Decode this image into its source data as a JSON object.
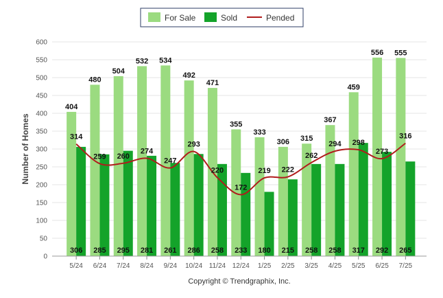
{
  "colors": {
    "for_sale": "#9bdb80",
    "sold": "#14a32a",
    "pended": "#b01c1c",
    "grid": "#e6e6e6"
  },
  "copyright": "Copyright © Trendgraphix, Inc.",
  "chart_data": {
    "type": "bar",
    "ylabel": "Number of Homes",
    "xlabel": "",
    "ylim": [
      0,
      600
    ],
    "yticks": [
      0,
      50,
      100,
      150,
      200,
      250,
      300,
      350,
      400,
      450,
      500,
      550,
      600
    ],
    "grid": true,
    "legend_position": "top-center",
    "categories": [
      "5/24",
      "6/24",
      "7/24",
      "8/24",
      "9/24",
      "10/24",
      "11/24",
      "12/24",
      "1/25",
      "2/25",
      "3/25",
      "4/25",
      "5/25",
      "6/25",
      "7/25"
    ],
    "series": [
      {
        "name": "For Sale",
        "kind": "bar",
        "values": [
          404,
          480,
          504,
          532,
          534,
          492,
          471,
          355,
          333,
          306,
          315,
          367,
          459,
          556,
          555
        ]
      },
      {
        "name": "Sold",
        "kind": "bar",
        "values": [
          306,
          285,
          295,
          281,
          261,
          286,
          258,
          233,
          180,
          215,
          258,
          258,
          317,
          292,
          265
        ]
      },
      {
        "name": "Pended",
        "kind": "line",
        "values": [
          314,
          259,
          260,
          274,
          247,
          293,
          220,
          172,
          219,
          222,
          262,
          294,
          298,
          273,
          316
        ]
      }
    ]
  }
}
